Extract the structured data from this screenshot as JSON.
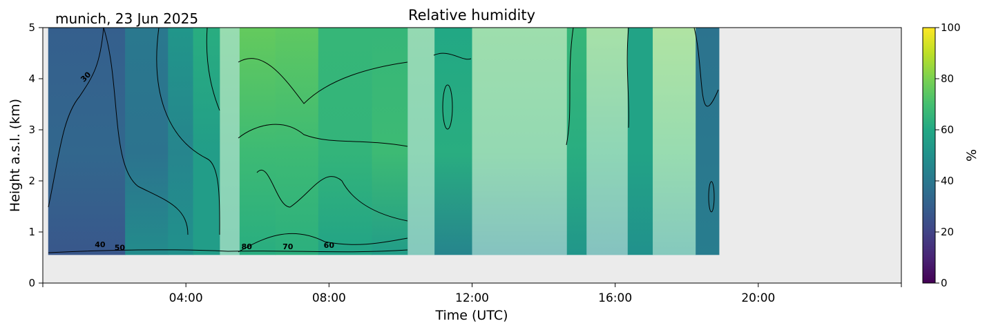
{
  "header": {
    "location_date": "munich, 23 Jun 2025",
    "title": "Relative humidity"
  },
  "chart_data": {
    "type": "heatmap",
    "title": "Relative humidity",
    "xlabel": "Time (UTC)",
    "ylabel": "Height a.s.l. (km)",
    "xlim_hours": [
      0,
      24
    ],
    "ylim_km": [
      0,
      5
    ],
    "x_ticks": [
      {
        "hour": 4,
        "label": "04:00"
      },
      {
        "hour": 8,
        "label": "08:00"
      },
      {
        "hour": 12,
        "label": "12:00"
      },
      {
        "hour": 16,
        "label": "16:00"
      },
      {
        "hour": 20,
        "label": "20:00"
      }
    ],
    "y_ticks": [
      {
        "value": 0,
        "label": "0"
      },
      {
        "value": 1,
        "label": "1"
      },
      {
        "value": 2,
        "label": "2"
      },
      {
        "value": 3,
        "label": "3"
      },
      {
        "value": 4,
        "label": "4"
      },
      {
        "value": 5,
        "label": "5"
      }
    ],
    "data_extent": {
      "start_hour": 0.15,
      "end_hour": 18.9,
      "bottom_km": 0.55,
      "top_km": 5
    },
    "missing_color": "#ebebeb",
    "colormap": "viridis",
    "colorbar": {
      "label": "%",
      "range": [
        0,
        100
      ],
      "ticks": [
        {
          "value": 0,
          "label": "0"
        },
        {
          "value": 20,
          "label": "20"
        },
        {
          "value": 40,
          "label": "40"
        },
        {
          "value": 60,
          "label": "60"
        },
        {
          "value": 80,
          "label": "80"
        },
        {
          "value": 100,
          "label": "100"
        }
      ]
    },
    "time_blocks": [
      {
        "start": 0.15,
        "end": 2.3,
        "bottom": 27,
        "mid": 33,
        "top": 30,
        "faded": false
      },
      {
        "start": 2.3,
        "end": 3.5,
        "bottom": 48,
        "mid": 38,
        "top": 40,
        "faded": false
      },
      {
        "start": 3.5,
        "end": 4.2,
        "bottom": 50,
        "mid": 45,
        "top": 52,
        "faded": false
      },
      {
        "start": 4.2,
        "end": 4.95,
        "bottom": 55,
        "mid": 55,
        "top": 62,
        "faded": false
      },
      {
        "start": 4.95,
        "end": 5.5,
        "bottom": 62,
        "mid": 65,
        "top": 70,
        "faded": true
      },
      {
        "start": 5.5,
        "end": 6.5,
        "bottom": 62,
        "mid": 68,
        "top": 76,
        "faded": false
      },
      {
        "start": 6.5,
        "end": 7.7,
        "bottom": 63,
        "mid": 68,
        "top": 75,
        "faded": false
      },
      {
        "start": 7.7,
        "end": 9.2,
        "bottom": 58,
        "mid": 65,
        "top": 66,
        "faded": false
      },
      {
        "start": 9.2,
        "end": 10.2,
        "bottom": 55,
        "mid": 68,
        "top": 66,
        "faded": false
      },
      {
        "start": 10.2,
        "end": 10.95,
        "bottom": 55,
        "mid": 65,
        "top": 68,
        "faded": true
      },
      {
        "start": 10.95,
        "end": 12.0,
        "bottom": 45,
        "mid": 62,
        "top": 60,
        "faded": false
      },
      {
        "start": 12.0,
        "end": 14.65,
        "bottom": 50,
        "mid": 68,
        "top": 72,
        "faded": true
      },
      {
        "start": 14.65,
        "end": 15.2,
        "bottom": 52,
        "mid": 62,
        "top": 66,
        "faded": false
      },
      {
        "start": 15.2,
        "end": 16.35,
        "bottom": 50,
        "mid": 65,
        "top": 75,
        "faded": true
      },
      {
        "start": 16.35,
        "end": 17.05,
        "bottom": 50,
        "mid": 58,
        "top": 58,
        "faded": false
      },
      {
        "start": 17.05,
        "end": 18.25,
        "bottom": 55,
        "mid": 70,
        "top": 78,
        "faded": true
      },
      {
        "start": 18.25,
        "end": 18.9,
        "bottom": 42,
        "mid": 40,
        "top": 38,
        "faded": false
      }
    ],
    "contour_labels": [
      {
        "text": "30",
        "hour": 1.25,
        "km": 4.0
      },
      {
        "text": "40",
        "hour": 1.6,
        "km": 0.7
      },
      {
        "text": "50",
        "hour": 2.15,
        "km": 0.64
      },
      {
        "text": "80",
        "hour": 5.7,
        "km": 0.66
      },
      {
        "text": "70",
        "hour": 6.85,
        "km": 0.66
      },
      {
        "text": "60",
        "hour": 8.0,
        "km": 0.69
      }
    ]
  }
}
